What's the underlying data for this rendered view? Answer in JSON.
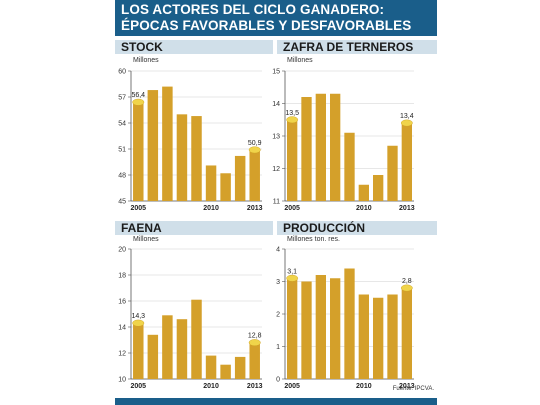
{
  "header": {
    "line1": "LOS ACTORES DEL CICLO GANADERO:",
    "line2": "ÉPOCAS FAVORABLES Y DESFAVORABLES"
  },
  "source": "Fuente: IPCVA.",
  "colors": {
    "header_bg": "#1a5e8a",
    "panel_title_bg": "#d0dfe9",
    "bar": "#d4a02a",
    "highlight_dot": "#f0d44a"
  },
  "chart_data": [
    {
      "id": "stock",
      "type": "bar",
      "title": "STOCK",
      "ylabel": "Millones",
      "ylim": [
        45,
        60
      ],
      "yticks": [
        45,
        48,
        51,
        54,
        57,
        60
      ],
      "ytick_labels": [
        "45",
        "48",
        "51",
        "54",
        "57",
        "60"
      ],
      "categories": [
        "2005",
        "2006",
        "2007",
        "2008",
        "2009",
        "2010",
        "2011",
        "2012",
        "2013"
      ],
      "x_labels_shown": [
        "2005",
        "2010",
        "2013"
      ],
      "values": [
        56.4,
        57.8,
        58.2,
        55.0,
        54.8,
        49.1,
        48.2,
        50.2,
        50.9
      ],
      "data_labels": [
        {
          "index": 0,
          "text": "56,4"
        },
        {
          "index": 8,
          "text": "50,9"
        }
      ]
    },
    {
      "id": "zafra",
      "type": "bar",
      "title": "ZAFRA DE TERNEROS",
      "ylabel": "Millones",
      "ylim": [
        11,
        15
      ],
      "yticks": [
        11,
        12,
        13,
        14,
        15
      ],
      "ytick_labels": [
        "11",
        "12",
        "13",
        "14",
        "15"
      ],
      "categories": [
        "2005",
        "2006",
        "2007",
        "2008",
        "2009",
        "2010",
        "2011",
        "2012",
        "2013"
      ],
      "x_labels_shown": [
        "2005",
        "2010",
        "2013"
      ],
      "values": [
        13.5,
        14.2,
        14.3,
        14.3,
        13.1,
        11.5,
        11.8,
        12.7,
        13.4
      ],
      "data_labels": [
        {
          "index": 0,
          "text": "13,5"
        },
        {
          "index": 8,
          "text": "13,4"
        }
      ]
    },
    {
      "id": "faena",
      "type": "bar",
      "title": "FAENA",
      "ylabel": "Millones",
      "ylim": [
        10,
        20
      ],
      "yticks": [
        10,
        12,
        14,
        16,
        18,
        20
      ],
      "ytick_labels": [
        "10",
        "12",
        "14",
        "16",
        "18",
        "20"
      ],
      "categories": [
        "2005",
        "2006",
        "2007",
        "2008",
        "2009",
        "2010",
        "2011",
        "2012",
        "2013"
      ],
      "x_labels_shown": [
        "2005",
        "2010",
        "2013"
      ],
      "values": [
        14.3,
        13.4,
        14.9,
        14.6,
        16.1,
        11.8,
        11.1,
        11.7,
        12.8
      ],
      "data_labels": [
        {
          "index": 0,
          "text": "14,3"
        },
        {
          "index": 8,
          "text": "12,8"
        }
      ]
    },
    {
      "id": "produccion",
      "type": "bar",
      "title": "PRODUCCIÓN",
      "ylabel": "Millones ton. res.",
      "ylim": [
        0,
        4
      ],
      "yticks": [
        0,
        1,
        2,
        3,
        4
      ],
      "ytick_labels": [
        "0",
        "1",
        "2",
        "3",
        "4"
      ],
      "categories": [
        "2005",
        "2006",
        "2007",
        "2008",
        "2009",
        "2010",
        "2011",
        "2012",
        "2013"
      ],
      "x_labels_shown": [
        "2005",
        "2010",
        "2013"
      ],
      "values": [
        3.1,
        3.0,
        3.2,
        3.1,
        3.4,
        2.6,
        2.5,
        2.6,
        2.8
      ],
      "data_labels": [
        {
          "index": 0,
          "text": "3,1"
        },
        {
          "index": 8,
          "text": "2,8"
        }
      ]
    }
  ]
}
